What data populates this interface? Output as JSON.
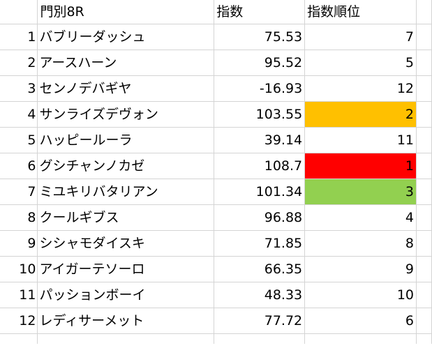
{
  "headers": {
    "name": "門別8R",
    "index": "指数",
    "rank": "指数順位"
  },
  "colors": {
    "rank1": "#ff0000",
    "rank2": "#ffc000",
    "rank3": "#92d050"
  },
  "rows": [
    {
      "no": "1",
      "name": "バブリーダッシュ",
      "index": "75.53",
      "rank": "7"
    },
    {
      "no": "2",
      "name": "アースハーン",
      "index": "95.52",
      "rank": "5"
    },
    {
      "no": "3",
      "name": "センノデバギヤ",
      "index": "-16.93",
      "rank": "12"
    },
    {
      "no": "4",
      "name": "サンライズデヴォン",
      "index": "103.55",
      "rank": "2"
    },
    {
      "no": "5",
      "name": "ハッピールーラ",
      "index": "39.14",
      "rank": "11"
    },
    {
      "no": "6",
      "name": "グシチャンノカゼ",
      "index": "108.7",
      "rank": "1"
    },
    {
      "no": "7",
      "name": "ミユキリバタリアン",
      "index": "101.34",
      "rank": "3"
    },
    {
      "no": "8",
      "name": "クールギブス",
      "index": "96.88",
      "rank": "4"
    },
    {
      "no": "9",
      "name": "シシャモダイスキ",
      "index": "71.85",
      "rank": "8"
    },
    {
      "no": "10",
      "name": "アイガーテソーロ",
      "index": "66.35",
      "rank": "9"
    },
    {
      "no": "11",
      "name": "パッションボーイ",
      "index": "48.33",
      "rank": "10"
    },
    {
      "no": "12",
      "name": "レディサーメット",
      "index": "77.72",
      "rank": "6"
    }
  ]
}
